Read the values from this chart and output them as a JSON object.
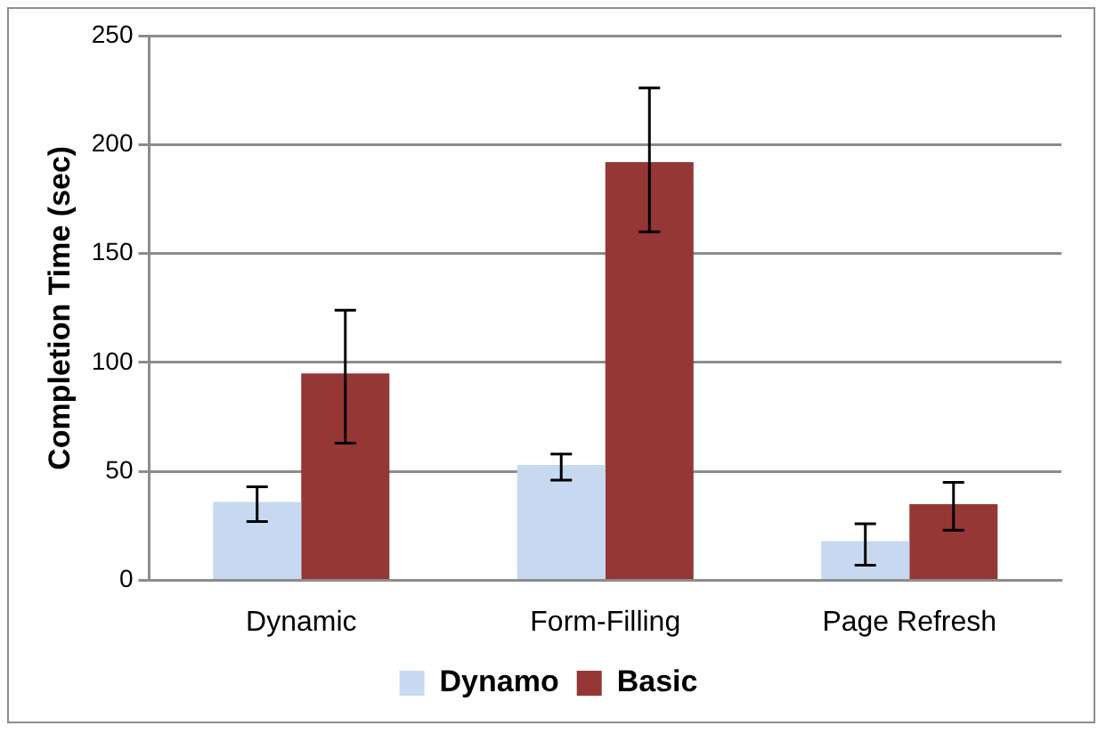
{
  "chart_data": {
    "type": "bar",
    "ylabel": "Completion Time (sec)",
    "categories": [
      "Dynamic",
      "Form-Filling",
      "Page Refresh"
    ],
    "series": [
      {
        "name": "Dynamo",
        "color": "#c6d9f0",
        "values": [
          36,
          53,
          18
        ],
        "errors": [
          [
            27,
            43
          ],
          [
            46,
            58
          ],
          [
            7,
            26
          ]
        ]
      },
      {
        "name": "Basic",
        "color": "#953735",
        "values": [
          95,
          192,
          35
        ],
        "errors": [
          [
            63,
            124
          ],
          [
            160,
            226
          ],
          [
            23,
            45
          ]
        ]
      }
    ],
    "ylim": [
      0,
      250
    ],
    "yticks": [
      0,
      50,
      100,
      150,
      200,
      250
    ],
    "grid": "y",
    "legend": "bottom"
  }
}
